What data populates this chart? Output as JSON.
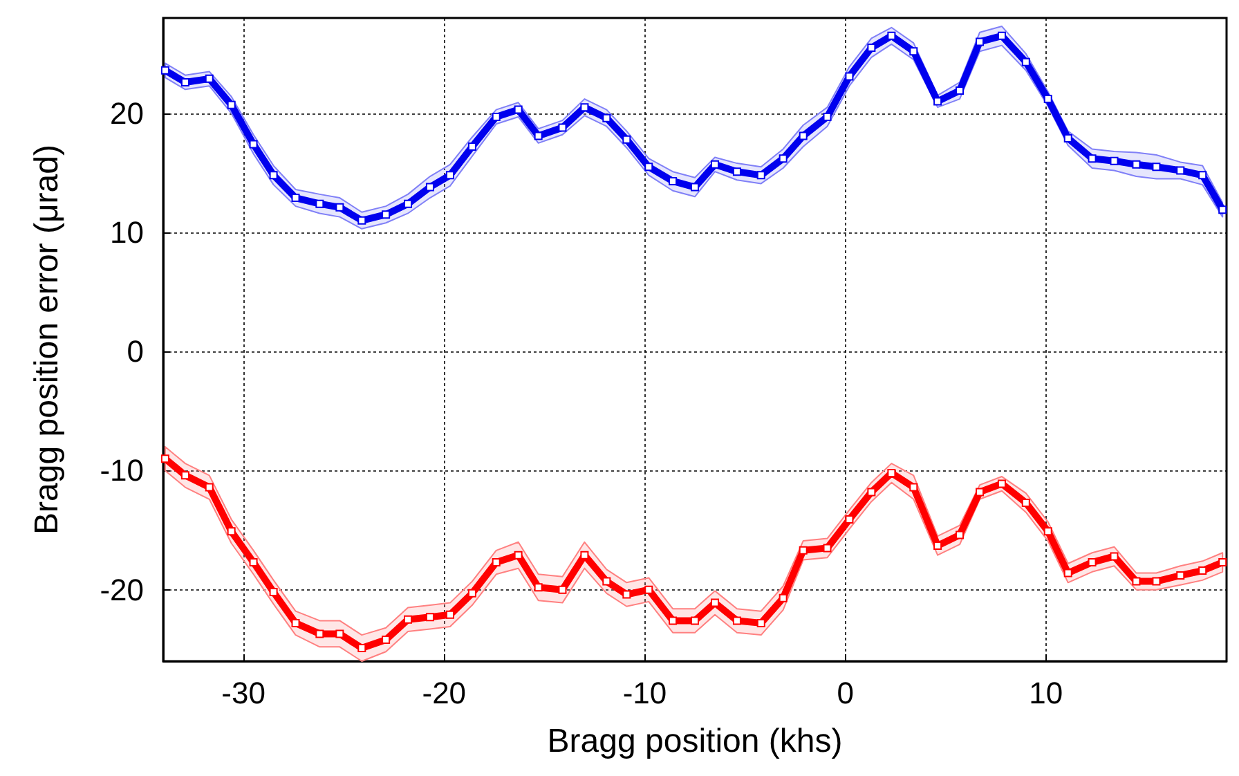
{
  "chart_data": {
    "type": "line",
    "xlabel": "Bragg position (khs)",
    "ylabel": "Bragg position error (μrad)",
    "x": [
      -33.9,
      -32.9,
      -31.7,
      -30.6,
      -29.5,
      -28.5,
      -27.4,
      -26.2,
      -25.2,
      -24.1,
      -22.9,
      -21.8,
      -20.7,
      -19.7,
      -18.6,
      -17.4,
      -16.3,
      -15.3,
      -14.1,
      -13.0,
      -11.9,
      -10.9,
      -9.8,
      -8.6,
      -7.5,
      -6.5,
      -5.4,
      -4.2,
      -3.1,
      -2.1,
      -0.9,
      0.2,
      1.3,
      2.3,
      3.4,
      4.6,
      5.7,
      6.7,
      7.8,
      9.0,
      10.1,
      11.1,
      12.3,
      13.4,
      14.5,
      15.5,
      16.7,
      17.8,
      18.8
    ],
    "series": [
      {
        "color": "#0000ee",
        "values": [
          23.6,
          22.6,
          22.9,
          20.7,
          17.4,
          14.8,
          12.9,
          12.4,
          12.1,
          11.0,
          11.5,
          12.4,
          13.8,
          14.8,
          17.2,
          19.7,
          20.3,
          18.1,
          18.8,
          20.5,
          19.6,
          17.8,
          15.5,
          14.3,
          13.8,
          15.7,
          15.1,
          14.8,
          16.2,
          18.1,
          19.7,
          23.1,
          25.5,
          26.5,
          25.2,
          21.0,
          21.9,
          26.0,
          26.5,
          24.3,
          21.2,
          17.9,
          16.2,
          16.0,
          15.7,
          15.5,
          15.2,
          14.8,
          11.9
        ],
        "lower": [
          23.0,
          22.0,
          22.3,
          20.0,
          16.6,
          14.0,
          12.2,
          11.6,
          11.3,
          10.3,
          10.8,
          11.6,
          12.9,
          13.9,
          16.4,
          19.1,
          19.7,
          17.5,
          18.2,
          19.8,
          18.9,
          17.1,
          14.8,
          13.5,
          13.0,
          15.1,
          14.4,
          14.1,
          15.4,
          17.2,
          18.9,
          22.3,
          24.7,
          25.8,
          24.5,
          20.5,
          21.2,
          25.2,
          25.7,
          23.6,
          20.6,
          17.3,
          15.4,
          15.2,
          14.7,
          14.5,
          14.5,
          14.0,
          11.3
        ],
        "upper": [
          24.2,
          23.2,
          23.5,
          21.4,
          18.2,
          15.6,
          13.6,
          13.2,
          12.9,
          11.7,
          12.2,
          13.2,
          14.7,
          15.7,
          18.0,
          20.3,
          20.9,
          18.7,
          19.4,
          21.2,
          20.3,
          18.5,
          16.2,
          15.1,
          14.6,
          16.3,
          15.8,
          15.5,
          17.0,
          19.0,
          20.5,
          23.9,
          26.3,
          27.2,
          25.9,
          21.5,
          22.6,
          26.8,
          27.3,
          25.0,
          21.8,
          18.5,
          17.0,
          16.8,
          16.7,
          16.5,
          15.9,
          15.6,
          12.5
        ]
      },
      {
        "color": "#ff0000",
        "values": [
          -9.0,
          -10.4,
          -11.4,
          -15.1,
          -17.7,
          -20.2,
          -22.8,
          -23.7,
          -23.7,
          -24.9,
          -24.2,
          -22.5,
          -22.3,
          -22.1,
          -20.3,
          -17.7,
          -17.1,
          -19.8,
          -20.0,
          -17.1,
          -19.3,
          -20.4,
          -20.0,
          -22.6,
          -22.6,
          -21.1,
          -22.6,
          -22.8,
          -20.7,
          -16.7,
          -16.5,
          -14.1,
          -11.8,
          -10.2,
          -11.4,
          -16.3,
          -15.4,
          -11.8,
          -11.1,
          -12.7,
          -15.1,
          -18.6,
          -17.7,
          -17.2,
          -19.3,
          -19.3,
          -18.8,
          -18.4,
          -17.7
        ],
        "lower": [
          -10.0,
          -11.4,
          -12.4,
          -16.1,
          -18.7,
          -21.2,
          -23.8,
          -24.8,
          -24.8,
          -26.0,
          -25.2,
          -23.5,
          -23.3,
          -23.1,
          -21.3,
          -18.7,
          -18.2,
          -20.9,
          -21.1,
          -18.2,
          -20.3,
          -21.4,
          -21.0,
          -23.6,
          -23.6,
          -22.1,
          -23.6,
          -23.8,
          -21.7,
          -17.5,
          -17.3,
          -14.9,
          -12.6,
          -11.0,
          -12.4,
          -17.1,
          -16.2,
          -12.4,
          -11.7,
          -13.5,
          -15.9,
          -19.4,
          -18.5,
          -18.0,
          -20.0,
          -20.0,
          -19.6,
          -19.2,
          -18.5
        ],
        "upper": [
          -8.0,
          -9.4,
          -10.4,
          -14.1,
          -16.7,
          -19.2,
          -21.8,
          -22.6,
          -22.6,
          -23.8,
          -23.2,
          -21.5,
          -21.3,
          -21.1,
          -19.3,
          -16.7,
          -16.0,
          -18.7,
          -18.9,
          -16.0,
          -18.3,
          -19.4,
          -19.0,
          -21.6,
          -21.6,
          -20.1,
          -21.6,
          -21.8,
          -19.7,
          -15.9,
          -15.7,
          -13.3,
          -11.0,
          -9.4,
          -10.4,
          -15.5,
          -14.6,
          -11.2,
          -10.5,
          -11.9,
          -14.3,
          -17.8,
          -16.9,
          -16.4,
          -18.6,
          -18.6,
          -18.0,
          -17.6,
          -16.9
        ]
      }
    ],
    "xlim": [
      -34,
      19
    ],
    "xticks": [
      -30,
      -20,
      -10,
      0,
      10
    ],
    "ylim": [
      -26,
      28
    ],
    "yticks": [
      -20,
      -10,
      0,
      10,
      20
    ],
    "grid": true,
    "marker": "square",
    "line_style": "solid"
  }
}
